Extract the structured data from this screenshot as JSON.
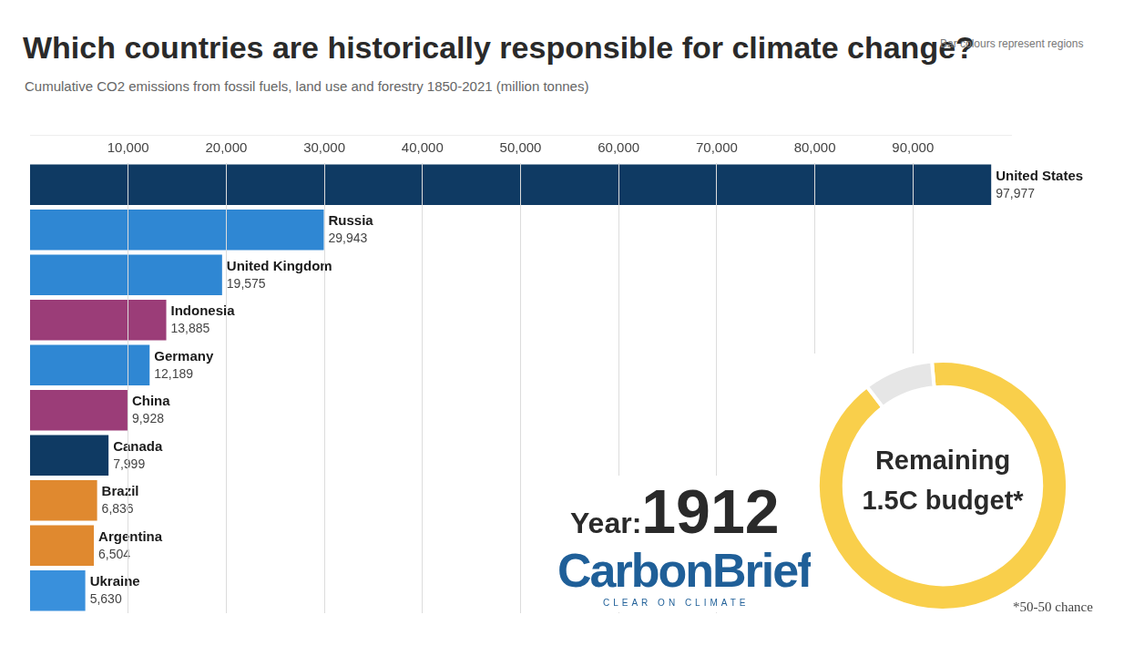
{
  "chart_data": [
    {
      "type": "bar",
      "orientation": "horizontal",
      "title": "Which countries are historically responsible for climate change?",
      "subtitle": "Cumulative CO2 emissions from fossil fuels, land use and forestry 1850-2021 (million tonnes)",
      "categories": [
        "United States",
        "Russia",
        "United Kingdom",
        "Indonesia",
        "Germany",
        "China",
        "Canada",
        "Brazil",
        "Argentina",
        "Ukraine"
      ],
      "values": [
        97977,
        29943,
        19575,
        13885,
        12189,
        9928,
        7999,
        6836,
        6504,
        5630
      ],
      "value_labels": [
        "97,977",
        "29,943",
        "19,575",
        "13,885",
        "12,189",
        "9,928",
        "7,999",
        "6,836",
        "6,504",
        "5,630"
      ],
      "colors": [
        "#0f3a63",
        "#2f87d3",
        "#2f87d3",
        "#9b3d78",
        "#2f87d3",
        "#9b3d78",
        "#0f3a63",
        "#e0892f",
        "#e0892f",
        "#3990dc"
      ],
      "xlim": [
        0,
        100000
      ],
      "xticks": [
        {
          "value": 10000,
          "label": "10,000"
        },
        {
          "value": 20000,
          "label": "20,000"
        },
        {
          "value": 30000,
          "label": "30,000"
        },
        {
          "value": 40000,
          "label": "40,000"
        },
        {
          "value": 50000,
          "label": "50,000"
        },
        {
          "value": 60000,
          "label": "60,000"
        },
        {
          "value": 70000,
          "label": "70,000"
        },
        {
          "value": 80000,
          "label": "80,000"
        },
        {
          "value": 90000,
          "label": "90,000"
        }
      ],
      "grid": true,
      "data_labels": true,
      "tick_labels": "x",
      "annotations": [
        "Bar colours represent regions",
        "Year:",
        "1912",
        "CarbonBrief",
        "CLEAR ON CLIMATE"
      ]
    },
    {
      "type": "doughnut",
      "title": "Remaining 1.5C budget*",
      "categories": [
        null,
        null
      ],
      "values": [
        91,
        9
      ],
      "colors": [
        "#f9cf4b",
        "#e6e6e6"
      ],
      "annotations": [
        "*50-50 chance"
      ]
    }
  ]
}
